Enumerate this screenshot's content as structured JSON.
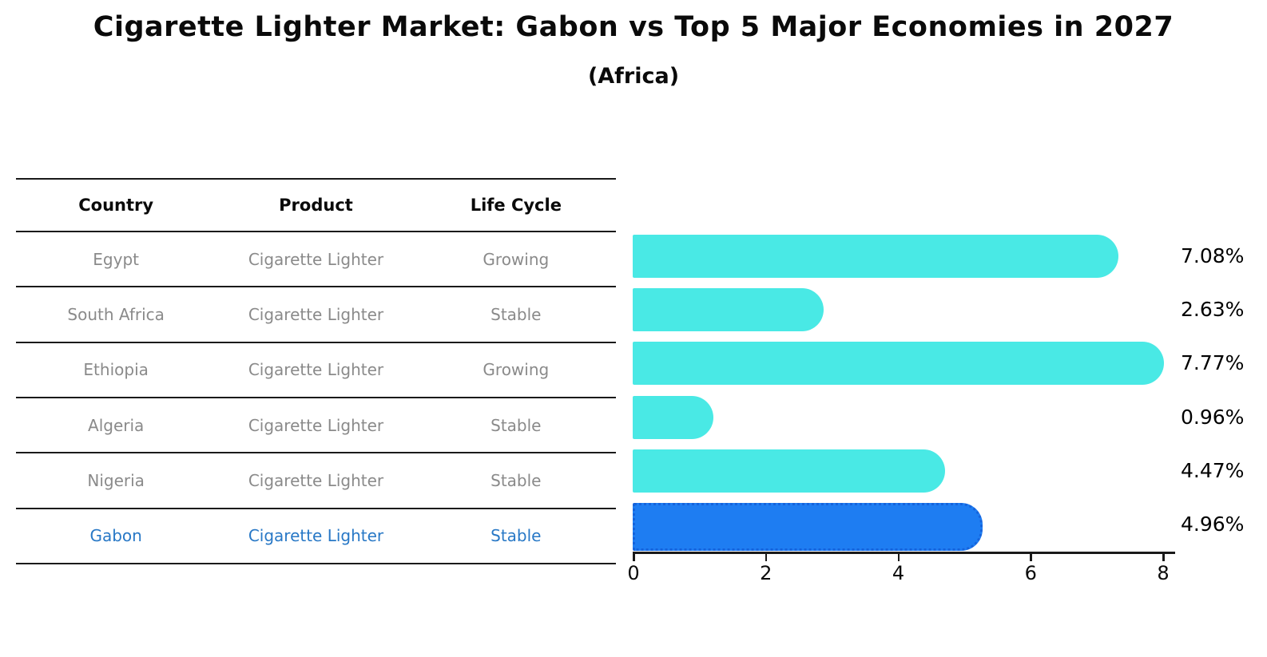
{
  "title": "Cigarette Lighter Market: Gabon vs Top 5 Major Economies in 2027",
  "subtitle": "(Africa)",
  "table": {
    "headers": [
      "Country",
      "Product",
      "Life Cycle"
    ],
    "rows": [
      {
        "country": "Egypt",
        "product": "Cigarette Lighter",
        "life_cycle": "Growing",
        "highlighted": false
      },
      {
        "country": "South Africa",
        "product": "Cigarette Lighter",
        "life_cycle": "Stable",
        "highlighted": false
      },
      {
        "country": "Ethiopia",
        "product": "Cigarette Lighter",
        "life_cycle": "Growing",
        "highlighted": false
      },
      {
        "country": "Algeria",
        "product": "Cigarette Lighter",
        "life_cycle": "Stable",
        "highlighted": false
      },
      {
        "country": "Nigeria",
        "product": "Cigarette Lighter",
        "life_cycle": "Stable",
        "highlighted": false
      },
      {
        "country": "Gabon",
        "product": "Cigarette Lighter",
        "life_cycle": "Stable",
        "highlighted": true
      }
    ]
  },
  "chart_data": {
    "type": "bar",
    "orientation": "horizontal",
    "title": "Cigarette Lighter Market: Gabon vs Top 5 Major Economies in 2027 (Africa)",
    "categories": [
      "Egypt",
      "South Africa",
      "Ethiopia",
      "Algeria",
      "Nigeria",
      "Gabon"
    ],
    "values": [
      7.08,
      2.63,
      7.77,
      0.96,
      4.47,
      4.96
    ],
    "value_labels": [
      "7.08%",
      "2.63%",
      "7.77%",
      "0.96%",
      "4.47%",
      "4.96%"
    ],
    "unit": "percent",
    "xlim": [
      0,
      8.2
    ],
    "x_ticks": [
      0,
      2,
      4,
      6,
      8
    ],
    "grid": false,
    "legend": "none",
    "highlight_index": 5,
    "colors": {
      "bar": "#49E9E5",
      "highlight_bar": "#1E7DF2",
      "highlight_border": "#1563DC"
    }
  },
  "colors": {
    "background": "#FFFFFF",
    "text": "#0A0A0A",
    "muted_text": "#8A8A8A",
    "highlight_text": "#2878C6",
    "table_lines": "#1A1A1A"
  }
}
